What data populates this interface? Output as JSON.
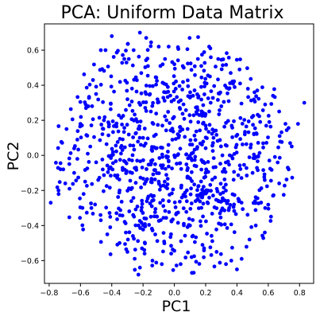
{
  "chart_data": {
    "type": "scatter",
    "title": "PCA: Uniform Data Matrix",
    "xlabel": "PC1",
    "ylabel": "PC2",
    "xlim": [
      -0.83,
      0.89
    ],
    "ylim": [
      -0.73,
      0.75
    ],
    "xticks": [
      -0.8,
      -0.6,
      -0.4,
      -0.2,
      0.0,
      0.2,
      0.4,
      0.6,
      0.8
    ],
    "xtick_labels": [
      "−0.8",
      "−0.6",
      "−0.4",
      "−0.2",
      "0.0",
      "0.2",
      "0.4",
      "0.6",
      "0.8"
    ],
    "yticks": [
      -0.6,
      -0.4,
      -0.2,
      0.0,
      0.2,
      0.4,
      0.6
    ],
    "ytick_labels": [
      "−0.6",
      "−0.4",
      "−0.2",
      "0.0",
      "0.2",
      "0.4",
      "0.6"
    ],
    "grid": false,
    "legend": "none",
    "point_color": "#0000ff",
    "n_points_shown": 1000,
    "series": [
      {
        "points": [
          [
            -0.79,
            -0.27
          ],
          [
            -0.74,
            -0.2
          ],
          [
            -0.71,
            -0.08
          ],
          [
            -0.67,
            -0.19
          ],
          [
            -0.64,
            -0.1
          ],
          [
            -0.64,
            0.04
          ],
          [
            -0.62,
            -0.02
          ],
          [
            -0.57,
            -0.15
          ],
          [
            -0.55,
            0.28
          ],
          [
            -0.52,
            0.43
          ],
          [
            -0.5,
            0.35
          ],
          [
            -0.47,
            0.6
          ],
          [
            -0.44,
            0.6
          ],
          [
            -0.4,
            0.68
          ],
          [
            -0.32,
            0.55
          ],
          [
            -0.26,
            0.6
          ],
          [
            -0.22,
            0.7
          ],
          [
            -0.18,
            0.67
          ],
          [
            -0.1,
            0.62
          ],
          [
            -0.06,
            0.55
          ],
          [
            0.0,
            0.52
          ],
          [
            0.06,
            0.5
          ],
          [
            0.15,
            0.55
          ],
          [
            0.23,
            0.61
          ],
          [
            0.28,
            0.55
          ],
          [
            0.36,
            0.47
          ],
          [
            0.42,
            0.41
          ],
          [
            0.47,
            0.38
          ],
          [
            0.53,
            0.37
          ],
          [
            0.58,
            0.29
          ],
          [
            0.63,
            0.34
          ],
          [
            0.67,
            0.25
          ],
          [
            0.71,
            0.18
          ],
          [
            0.74,
            0.07
          ],
          [
            0.79,
            0.18
          ],
          [
            0.83,
            0.3
          ],
          [
            0.73,
            -0.08
          ],
          [
            0.67,
            -0.16
          ],
          [
            0.63,
            -0.23
          ],
          [
            0.58,
            -0.3
          ],
          [
            0.52,
            -0.4
          ],
          [
            0.48,
            -0.48
          ],
          [
            0.43,
            -0.59
          ],
          [
            0.4,
            -0.65
          ],
          [
            0.33,
            -0.62
          ],
          [
            0.27,
            -0.55
          ],
          [
            0.19,
            -0.53
          ],
          [
            0.11,
            -0.58
          ],
          [
            0.04,
            -0.62
          ],
          [
            -0.02,
            -0.56
          ],
          [
            -0.08,
            -0.62
          ],
          [
            -0.14,
            -0.6
          ],
          [
            -0.19,
            -0.56
          ],
          [
            -0.23,
            -0.68
          ],
          [
            -0.22,
            -0.64
          ],
          [
            -0.3,
            -0.55
          ],
          [
            -0.35,
            -0.5
          ],
          [
            -0.41,
            -0.41
          ],
          [
            -0.47,
            -0.37
          ],
          [
            -0.53,
            -0.3
          ],
          [
            -0.58,
            -0.22
          ],
          [
            -0.62,
            0.09
          ],
          [
            -0.6,
            0.18
          ],
          [
            -0.45,
            0.2
          ],
          [
            -0.3,
            0.32
          ],
          [
            -0.15,
            0.25
          ],
          [
            0.1,
            0.33
          ],
          [
            0.3,
            0.28
          ],
          [
            0.45,
            0.12
          ],
          [
            0.5,
            -0.1
          ],
          [
            0.35,
            -0.3
          ],
          [
            0.1,
            -0.4
          ],
          [
            -0.15,
            -0.35
          ],
          [
            -0.35,
            -0.2
          ],
          [
            -0.4,
            0.0
          ],
          [
            -0.2,
            0.1
          ],
          [
            0.0,
            0.0
          ],
          [
            0.2,
            -0.1
          ],
          [
            0.25,
            0.1
          ],
          [
            -0.05,
            0.2
          ],
          [
            -0.1,
            -0.15
          ],
          [
            0.15,
            -0.25
          ]
        ]
      }
    ]
  }
}
